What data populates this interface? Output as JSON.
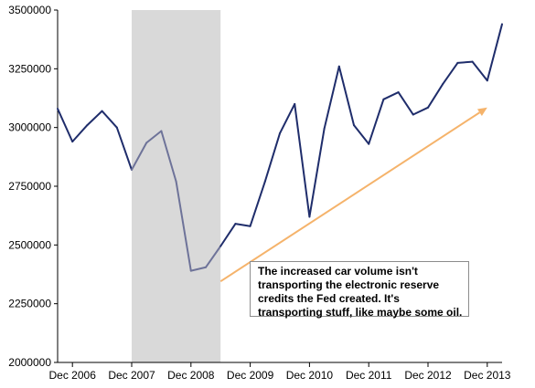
{
  "chart_data": {
    "type": "line",
    "title": "",
    "xlabel": "",
    "ylabel": "",
    "ylim": [
      2000000,
      3500000
    ],
    "y_ticks": [
      2000000,
      2250000,
      2500000,
      2750000,
      3000000,
      3250000,
      3500000
    ],
    "y_tick_labels": [
      "2000000",
      "2250000",
      "2500000",
      "2750000",
      "3000000",
      "3250000",
      "3500000"
    ],
    "x_tick_labels": [
      "Dec 2006",
      "Dec 2007",
      "Dec 2008",
      "Dec 2009",
      "Dec 2010",
      "Dec 2011",
      "Dec 2012",
      "Dec 2013"
    ],
    "x_tick_dates": [
      "2006-12",
      "2007-12",
      "2008-12",
      "2009-12",
      "2010-12",
      "2011-12",
      "2012-12",
      "2013-12"
    ],
    "xlim": [
      "2006-09",
      "2014-03"
    ],
    "grid": false,
    "shaded_region": {
      "start": "2007-12",
      "end": "2009-06",
      "color": "#d9d9d9"
    },
    "series": [
      {
        "color": "#1f2d6b",
        "recession_color": "#6e7399",
        "points": [
          {
            "x": "2006-09",
            "y": 3080000
          },
          {
            "x": "2006-12",
            "y": 2940000
          },
          {
            "x": "2007-03",
            "y": 3010000
          },
          {
            "x": "2007-06",
            "y": 3070000
          },
          {
            "x": "2007-09",
            "y": 3000000
          },
          {
            "x": "2007-12",
            "y": 2820000
          },
          {
            "x": "2008-03",
            "y": 2935000
          },
          {
            "x": "2008-06",
            "y": 2985000
          },
          {
            "x": "2008-09",
            "y": 2770000
          },
          {
            "x": "2008-12",
            "y": 2390000
          },
          {
            "x": "2009-03",
            "y": 2405000
          },
          {
            "x": "2009-06",
            "y": 2495000
          },
          {
            "x": "2009-09",
            "y": 2590000
          },
          {
            "x": "2009-12",
            "y": 2580000
          },
          {
            "x": "2010-03",
            "y": 2770000
          },
          {
            "x": "2010-06",
            "y": 2975000
          },
          {
            "x": "2010-09",
            "y": 3100000
          },
          {
            "x": "2010-12",
            "y": 2620000
          },
          {
            "x": "2011-03",
            "y": 2995000
          },
          {
            "x": "2011-06",
            "y": 3260000
          },
          {
            "x": "2011-09",
            "y": 3010000
          },
          {
            "x": "2011-12",
            "y": 2930000
          },
          {
            "x": "2012-03",
            "y": 3120000
          },
          {
            "x": "2012-06",
            "y": 3150000
          },
          {
            "x": "2012-09",
            "y": 3055000
          },
          {
            "x": "2012-12",
            "y": 3085000
          },
          {
            "x": "2013-03",
            "y": 3185000
          },
          {
            "x": "2013-06",
            "y": 3275000
          },
          {
            "x": "2013-09",
            "y": 3280000
          },
          {
            "x": "2013-12",
            "y": 3200000
          },
          {
            "x": "2014-03",
            "y": 3440000
          }
        ]
      }
    ],
    "trend_arrow": {
      "color": "#f5b36b",
      "start": {
        "x": "2009-06",
        "y": 2345000
      },
      "end": {
        "x": "2013-12",
        "y": 3085000
      }
    },
    "annotation": "The increased car volume isn't transporting the electronic reserve credits the Fed created. It's transporting stuff, like maybe some oil."
  }
}
